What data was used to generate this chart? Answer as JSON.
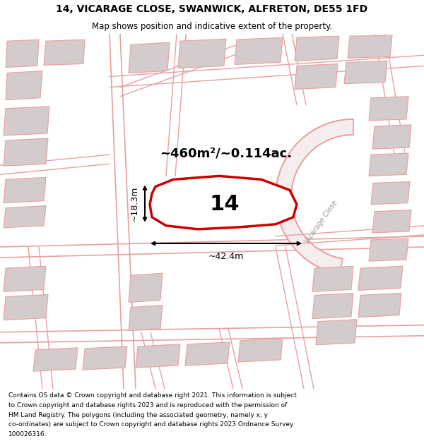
{
  "title_line1": "14, VICARAGE CLOSE, SWANWICK, ALFRETON, DE55 1FD",
  "title_line2": "Map shows position and indicative extent of the property.",
  "footer_lines": [
    "Contains OS data © Crown copyright and database right 2021. This information is subject",
    "to Crown copyright and database rights 2023 and is reproduced with the permission of",
    "HM Land Registry. The polygons (including the associated geometry, namely x, y",
    "co-ordinates) are subject to Crown copyright and database rights 2023 Ordnance Survey",
    "100026316."
  ],
  "area_label": "~460m²/~0.114ac.",
  "number_label": "14",
  "width_label": "~42.4m",
  "height_label": "~18.3m",
  "map_bg": "#ffffff",
  "road_color": "#e8a0a0",
  "building_color": "#d4cccc",
  "highlight_color": "#cc0000",
  "vicarage_close_label": "Vicarage Close"
}
